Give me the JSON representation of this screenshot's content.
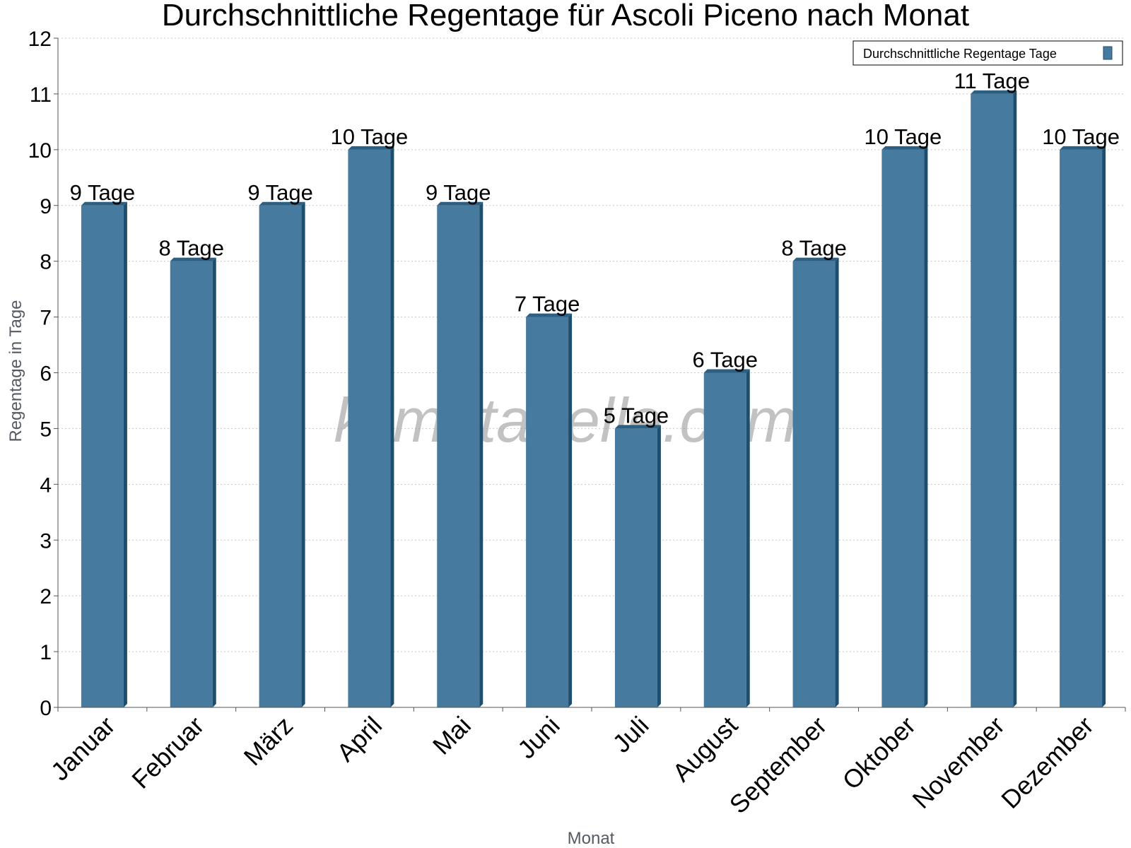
{
  "watermark": "klimatabelle.com",
  "colors": {
    "bar_front": "#467a9e",
    "bar_side": "#1d4e6e",
    "bar_top": "#2c5f82",
    "grid": "#c8c8c8",
    "axis": "#555555"
  },
  "chart_data": {
    "type": "bar",
    "title": "Durchschnittliche Regentage für Ascoli Piceno nach Monat",
    "xlabel": "Monat",
    "ylabel": "Regentage in Tage",
    "ylim": [
      0,
      12
    ],
    "yticks": [
      "0",
      "1",
      "2",
      "3",
      "4",
      "5",
      "6",
      "7",
      "8",
      "9",
      "10",
      "11",
      "12"
    ],
    "grid": true,
    "legend_position": "top-right",
    "categories": [
      "Januar",
      "Februar",
      "März",
      "April",
      "Mai",
      "Juni",
      "Juli",
      "August",
      "September",
      "Oktober",
      "November",
      "Dezember"
    ],
    "series": [
      {
        "name": "Durchschnittliche Regentage Tage",
        "values": [
          9,
          8,
          9,
          10,
          9,
          7,
          5,
          6,
          8,
          10,
          11,
          10
        ],
        "labels": [
          "9 Tage",
          "8 Tage",
          "9 Tage",
          "10 Tage",
          "9 Tage",
          "7 Tage",
          "5 Tage",
          "6 Tage",
          "8 Tage",
          "10 Tage",
          "11 Tage",
          "10 Tage"
        ]
      }
    ]
  }
}
